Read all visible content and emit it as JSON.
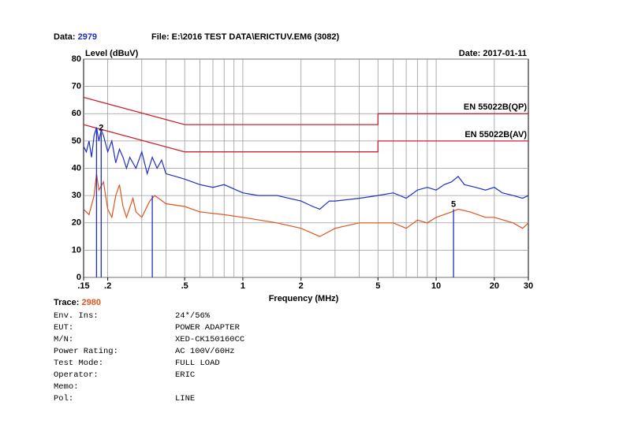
{
  "chart_data": {
    "type": "line",
    "data_label": "Data:",
    "data_number": "2979",
    "file": "File: E:\\2016 TEST DATA\\ERICTUV.EM6  (3082)",
    "date": "Date: 2017-01-11",
    "y_label": "Level (dBuV)",
    "x_label": "Frequency (MHz)",
    "trace_label": "Trace:",
    "trace_number": "2980",
    "xscale": "log",
    "grid": true,
    "xlim": [
      0.15,
      30
    ],
    "xticks": [
      {
        "value": 0.15,
        "label": ".15"
      },
      {
        "value": 0.2,
        "label": ".2"
      },
      {
        "value": 0.5,
        "label": ".5"
      },
      1,
      2,
      5,
      10,
      20,
      30
    ],
    "ylim": [
      0,
      80
    ],
    "yticks": [
      0,
      10,
      20,
      30,
      40,
      50,
      60,
      70,
      80
    ],
    "series": [
      {
        "name": "EN 55022B(QP)",
        "color": "#cc2233",
        "x": [
          0.15,
          0.5,
          5,
          5,
          30
        ],
        "values": [
          66,
          56,
          56,
          60,
          60
        ]
      },
      {
        "name": "EN 55022B(AV)",
        "color": "#cc2233",
        "x": [
          0.15,
          0.5,
          5,
          5,
          30
        ],
        "values": [
          56,
          46,
          46,
          50,
          50
        ]
      },
      {
        "color": "#1f2fc0",
        "x": [
          0.15,
          0.155,
          0.16,
          0.165,
          0.17,
          0.175,
          0.18,
          0.185,
          0.19,
          0.2,
          0.21,
          0.22,
          0.23,
          0.24,
          0.25,
          0.26,
          0.28,
          0.3,
          0.32,
          0.34,
          0.36,
          0.38,
          0.4,
          0.45,
          0.5,
          0.6,
          0.7,
          0.8,
          1,
          1.2,
          1.5,
          2,
          2.3,
          2.5,
          2.8,
          3,
          4,
          5,
          6,
          7,
          8,
          9,
          10,
          11,
          12,
          13,
          14,
          16,
          18,
          20,
          22,
          25,
          28,
          30
        ],
        "values": [
          48,
          46,
          50,
          44,
          52,
          55,
          50,
          54,
          52,
          46,
          50,
          42,
          47,
          44,
          40,
          44,
          40,
          46,
          38,
          44,
          40,
          43,
          38,
          37,
          36,
          34,
          33,
          34,
          31,
          30,
          30,
          28,
          26,
          25,
          28,
          28,
          29,
          30,
          31,
          29,
          32,
          33,
          32,
          34,
          35,
          37,
          34,
          33,
          32,
          33,
          31,
          30,
          29,
          30
        ]
      },
      {
        "color": "#e0541e",
        "x": [
          0.15,
          0.16,
          0.17,
          0.175,
          0.18,
          0.19,
          0.2,
          0.21,
          0.22,
          0.23,
          0.24,
          0.25,
          0.27,
          0.28,
          0.3,
          0.33,
          0.35,
          0.4,
          0.5,
          0.6,
          0.8,
          1,
          1.5,
          2,
          2.5,
          3,
          4,
          5,
          6,
          7,
          8,
          9,
          10,
          12,
          13,
          15,
          18,
          20,
          25,
          28,
          30
        ],
        "values": [
          25,
          23,
          30,
          38,
          32,
          35,
          25,
          22,
          30,
          34,
          26,
          22,
          29,
          24,
          22,
          28,
          30,
          27,
          26,
          24,
          23,
          22,
          20,
          18,
          15,
          18,
          20,
          20,
          20,
          18,
          21,
          20,
          22,
          24,
          25,
          24,
          22,
          22,
          20,
          18,
          20
        ]
      }
    ],
    "markers": [
      {
        "x": 0.175,
        "y": 55
      },
      {
        "x": 0.185,
        "y": 53,
        "label": "2"
      },
      {
        "x": 0.34,
        "y": 30
      },
      {
        "x": 12.3,
        "y": 25,
        "label": "5"
      }
    ],
    "marker_color": "#1f2fc0"
  },
  "info": {
    "rows": [
      {
        "label": "Env. Ins:",
        "value": "24*/56%"
      },
      {
        "label": "EUT:",
        "value": "POWER ADAPTER"
      },
      {
        "label": "M/N:",
        "value": "XED-CK150160CC"
      },
      {
        "label": "Power Rating:",
        "value": "AC 100V/60Hz"
      },
      {
        "label": "Test Mode:",
        "value": "FULL LOAD"
      },
      {
        "label": "Operator:",
        "value": "ERIC"
      },
      {
        "label": "Memo:"
      },
      {
        "label": "Pol:",
        "value": "LINE"
      }
    ]
  }
}
